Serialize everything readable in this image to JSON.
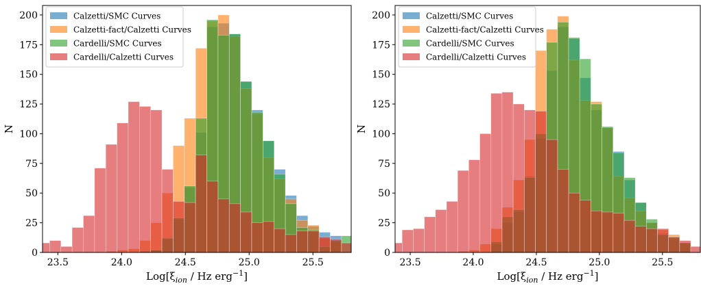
{
  "chart_data": [
    {
      "type": "bar",
      "subtype": "overlapping-histogram",
      "title": "",
      "xlabel": "Log[ξ_ion / Hz erg⁻¹]",
      "xlabel_main": "Log[ξ",
      "xlabel_sub": "ion",
      "xlabel_mid": " / Hz erg",
      "xlabel_sup": "−1",
      "xlabel_end": "]",
      "ylabel": "N",
      "xlim": [
        23.38,
        25.8
      ],
      "ylim": [
        0,
        208
      ],
      "xticks": [
        23.5,
        24.0,
        24.5,
        25.0,
        25.5
      ],
      "xtick_labels": [
        "23.5",
        "24.0",
        "24.5",
        "25.0",
        "25.5"
      ],
      "yticks": [
        0,
        25,
        50,
        75,
        100,
        125,
        150,
        175,
        200
      ],
      "ytick_labels": [
        "0",
        "25",
        "50",
        "75",
        "100",
        "125",
        "150",
        "175",
        "200"
      ],
      "grid": false,
      "legend_position": "top-left",
      "series": [
        {
          "name": "Calzetti/SMC Curves",
          "color": "#1f77b4",
          "bin_start": 24.14,
          "bin_width": 0.088,
          "values": [
            1,
            2,
            11,
            28,
            55,
            101,
            190,
            193,
            184,
            144,
            120,
            94,
            70,
            48,
            31,
            22,
            17,
            14
          ]
        },
        {
          "name": "Calzetti-fact/Calzetti Curves",
          "color": "#ff7f0e",
          "bin_start": 23.876,
          "bin_width": 0.088,
          "values": [
            1,
            2,
            3,
            10,
            25,
            50,
            90,
            113,
            172,
            195,
            200,
            182,
            138,
            117,
            80,
            62,
            45,
            27,
            23,
            12,
            9
          ]
        },
        {
          "name": "Cardelli/SMC Curves",
          "color": "#2ca02c",
          "bin_start": 24.14,
          "bin_width": 0.088,
          "values": [
            1,
            2,
            12,
            29,
            56,
            113,
            196,
            183,
            184,
            144,
            118,
            94,
            66,
            41,
            21,
            19,
            5,
            10,
            14
          ]
        },
        {
          "name": "Cardelli/Calzetti Curves",
          "color": "#d62728",
          "bin_start": 23.348,
          "bin_width": 0.088,
          "values": [
            8,
            10,
            5,
            21,
            31,
            71,
            91,
            109,
            127,
            123,
            120,
            70,
            43,
            42,
            82,
            60,
            45,
            41,
            34,
            25,
            26,
            20,
            15,
            18,
            18,
            13,
            11,
            8,
            6,
            3
          ]
        }
      ]
    },
    {
      "type": "bar",
      "subtype": "overlapping-histogram",
      "title": "",
      "xlabel": "Log[ξ_ion / Hz erg⁻¹]",
      "xlabel_main": "Log[ξ",
      "xlabel_sub": "ion",
      "xlabel_mid": " / Hz erg",
      "xlabel_sup": "−1",
      "xlabel_end": "]",
      "ylabel": "N",
      "xlim": [
        23.38,
        25.8
      ],
      "ylim": [
        0,
        208
      ],
      "xticks": [
        23.5,
        24.0,
        24.5,
        25.0,
        25.5
      ],
      "xtick_labels": [
        "23.5",
        "24.0",
        "24.5",
        "25.0",
        "25.5"
      ],
      "yticks": [
        0,
        25,
        50,
        75,
        100,
        125,
        150,
        175,
        200
      ],
      "ytick_labels": [
        "0",
        "25",
        "50",
        "75",
        "100",
        "125",
        "150",
        "175",
        "200"
      ],
      "grid": false,
      "legend_position": "top-left",
      "series": [
        {
          "name": "Calzetti/SMC Curves",
          "color": "#1f77b4",
          "bin_start": 24.14,
          "bin_width": 0.088,
          "values": [
            7,
            25,
            34,
            64,
            96,
            153,
            190,
            180,
            147,
            120,
            105,
            85,
            61,
            42,
            25,
            16,
            11,
            8
          ]
        },
        {
          "name": "Calzetti-fact/Calzetti Curves",
          "color": "#ff7f0e",
          "bin_start": 23.876,
          "bin_width": 0.088,
          "values": [
            1,
            2,
            7,
            20,
            38,
            61,
            95,
            170,
            188,
            199,
            162,
            128,
            127,
            105,
            64,
            46,
            35,
            25,
            19,
            15,
            8
          ]
        },
        {
          "name": "Cardelli/SMC Curves",
          "color": "#2ca02c",
          "bin_start": 24.14,
          "bin_width": 0.088,
          "values": [
            9,
            30,
            36,
            63,
            100,
            177,
            194,
            181,
            163,
            125,
            106,
            84,
            63,
            42,
            28,
            15,
            13,
            8
          ]
        },
        {
          "name": "Cardelli/Calzetti Curves",
          "color": "#d62728",
          "bin_start": 23.348,
          "bin_width": 0.088,
          "values": [
            8,
            19,
            20,
            30,
            36,
            43,
            69,
            78,
            100,
            134,
            135,
            125,
            120,
            119,
            95,
            70,
            50,
            44,
            35,
            34,
            33,
            27,
            22,
            20,
            20,
            13,
            10,
            5,
            3,
            1
          ]
        }
      ]
    }
  ]
}
